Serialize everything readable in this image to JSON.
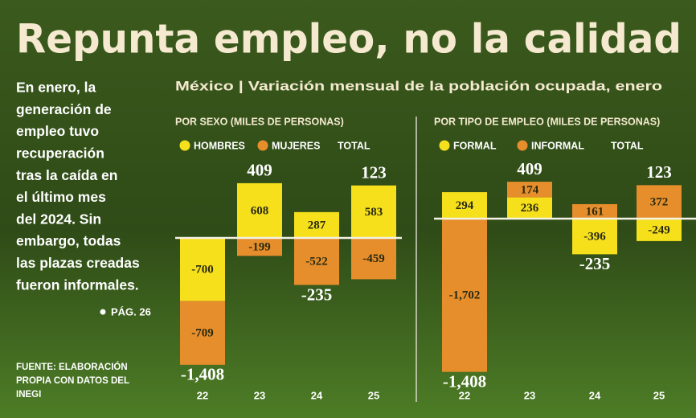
{
  "title": "Repunta empleo, no la calidad",
  "subtitle": "México | Variación mensual de la población ocupada, enero",
  "intro": [
    "En enero, la",
    "generación de",
    "empleo tuvo",
    "recuperación",
    "tras la caída en",
    "el último mes",
    "del 2024. Sin",
    "embargo, todas",
    "las plazas creadas",
    "fueron informales."
  ],
  "page_ref": "PÁG. 26",
  "source": [
    "FUENTE: ELABORACIÓN",
    "PROPIA CON DATOS DEL",
    "INEGI"
  ],
  "chart_data": [
    {
      "type": "bar",
      "stacked": true,
      "title": "POR SEXO (MILES DE PERSONAS)",
      "categories": [
        "22",
        "23",
        "24",
        "25"
      ],
      "series": [
        {
          "name": "HOMBRES",
          "color": "#f6e01c",
          "values": [
            -700,
            608,
            287,
            583
          ]
        },
        {
          "name": "MUJERES",
          "color": "#e68e2c",
          "values": [
            -709,
            -199,
            -522,
            -459
          ]
        }
      ],
      "totals": {
        "name": "TOTAL",
        "values": [
          -1408,
          409,
          -235,
          123
        ],
        "value_labels": [
          "-1,408",
          "409",
          "-235",
          "123"
        ]
      }
    },
    {
      "type": "bar",
      "stacked": true,
      "title": "POR TIPO DE EMPLEO (MILES DE PERSONAS)",
      "categories": [
        "22",
        "23",
        "24",
        "25"
      ],
      "series": [
        {
          "name": "FORMAL",
          "color": "#f6e01c",
          "values": [
            294,
            236,
            -396,
            -249
          ]
        },
        {
          "name": "INFORMAL",
          "color": "#e68e2c",
          "values": [
            -1702,
            174,
            161,
            372
          ],
          "value_labels": [
            "-1,702",
            "174",
            "161",
            "372"
          ]
        }
      ],
      "totals": {
        "name": "TOTAL",
        "values": [
          -1408,
          409,
          -235,
          123
        ],
        "value_labels": [
          "-1,408",
          "409",
          "-235",
          "123"
        ]
      }
    }
  ]
}
